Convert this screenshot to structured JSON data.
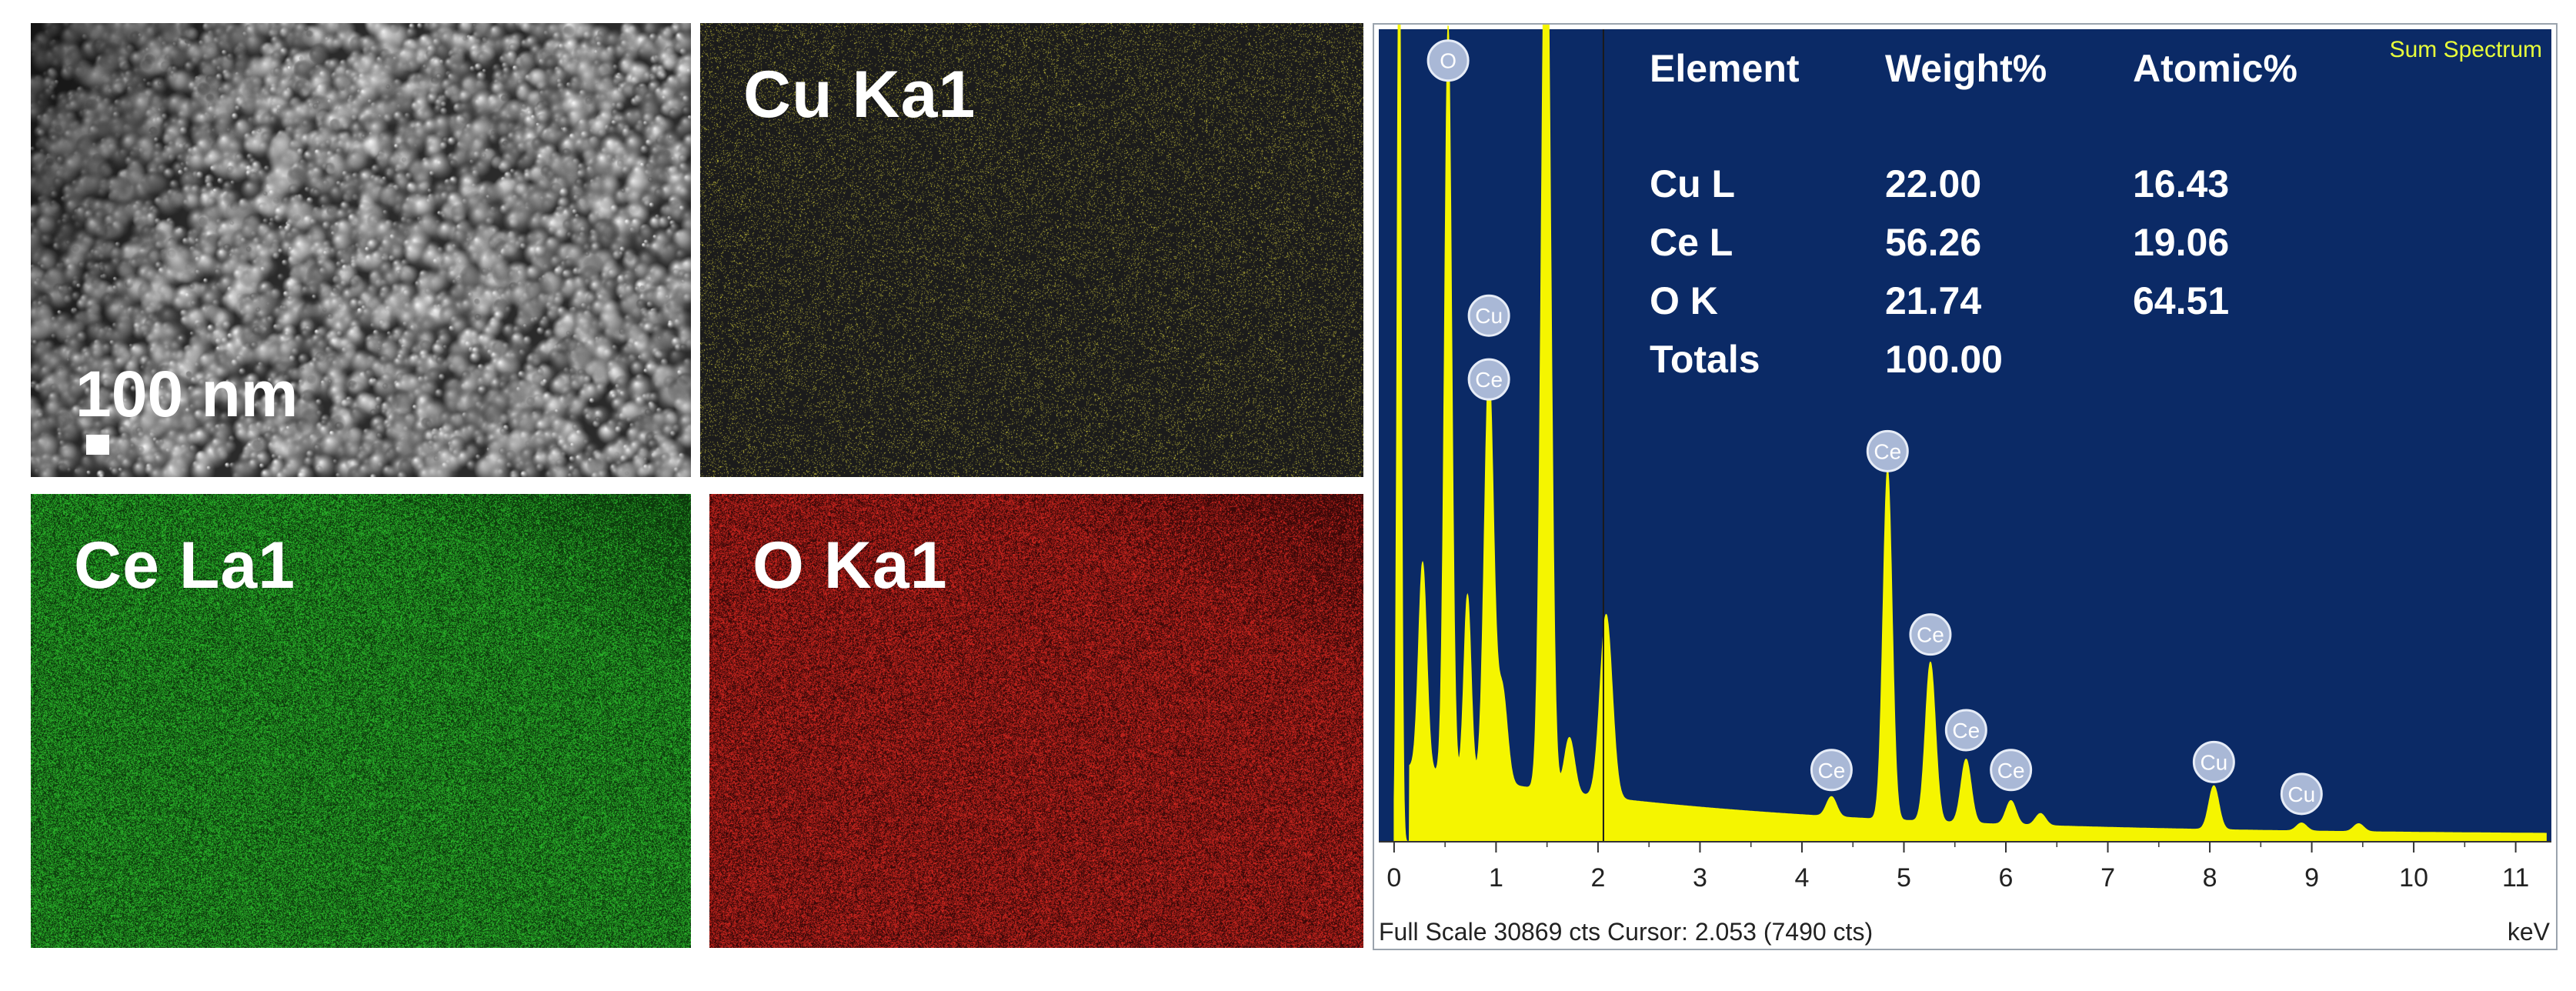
{
  "sem_panel": {
    "scale_bar_label": "100 nm",
    "colors": {
      "base": "#7d7d7d"
    }
  },
  "maps": [
    {
      "id": "cu",
      "label": "Cu Ka1",
      "color": "#c9c23a",
      "background": "#1b1b1b"
    },
    {
      "id": "ce",
      "label": "Ce La1",
      "color": "#2fc62f",
      "background": "#0c3a0c"
    },
    {
      "id": "o",
      "label": "O Ka1",
      "color": "#e02a22",
      "background": "#3a0808"
    }
  ],
  "spectrum": {
    "title": "Sum Spectrum",
    "colors": {
      "background": "#0b2a66",
      "fill": "#f5f500",
      "axis_text": "#222222",
      "title": "#e8ff3a"
    },
    "table": {
      "headers": [
        "Element",
        "Weight%",
        "Atomic%"
      ],
      "rows": [
        [
          "Cu L",
          "22.00",
          "16.43"
        ],
        [
          "Ce L",
          "56.26",
          "19.06"
        ],
        [
          "O K",
          "21.74",
          "64.51"
        ],
        [
          "Totals",
          "100.00",
          ""
        ]
      ]
    },
    "footer_text": "Full Scale 30869 cts Cursor: 2.053  (7490 cts)",
    "x_unit": "keV",
    "cursor_kev": 2.053,
    "chart_data": {
      "type": "area",
      "x_ticks": [
        "0",
        "1",
        "2",
        "3",
        "4",
        "5",
        "6",
        "7",
        "8",
        "9",
        "10",
        "11"
      ],
      "xlim": [
        -0.15,
        11.35
      ],
      "ylim": [
        0,
        1
      ],
      "peaks": [
        {
          "kev": 0.05,
          "height": 1.2,
          "width": 0.02
        },
        {
          "kev": 0.28,
          "height": 0.26,
          "width": 0.04
        },
        {
          "kev": 0.53,
          "height": 0.94,
          "width": 0.035
        },
        {
          "kev": 0.72,
          "height": 0.23,
          "width": 0.035
        },
        {
          "kev": 0.93,
          "height": 0.52,
          "width": 0.045
        },
        {
          "kev": 1.06,
          "height": 0.12,
          "width": 0.05
        },
        {
          "kev": 1.49,
          "height": 1.2,
          "width": 0.045
        },
        {
          "kev": 1.72,
          "height": 0.07,
          "width": 0.05
        },
        {
          "kev": 2.08,
          "height": 0.23,
          "width": 0.06
        },
        {
          "kev": 4.29,
          "height": 0.025,
          "width": 0.05
        },
        {
          "kev": 4.84,
          "height": 0.44,
          "width": 0.045
        },
        {
          "kev": 5.26,
          "height": 0.2,
          "width": 0.05
        },
        {
          "kev": 5.61,
          "height": 0.08,
          "width": 0.05
        },
        {
          "kev": 6.05,
          "height": 0.03,
          "width": 0.05
        },
        {
          "kev": 6.34,
          "height": 0.015,
          "width": 0.05
        },
        {
          "kev": 8.04,
          "height": 0.055,
          "width": 0.05
        },
        {
          "kev": 8.9,
          "height": 0.01,
          "width": 0.05
        },
        {
          "kev": 9.46,
          "height": 0.01,
          "width": 0.05
        }
      ],
      "annotations": [
        {
          "label": "O",
          "kev": 0.53,
          "level": 0.98
        },
        {
          "label": "Cu",
          "kev": 0.93,
          "level": 0.66
        },
        {
          "label": "Ce",
          "kev": 0.93,
          "level": 0.58
        },
        {
          "label": "Ce",
          "kev": 4.29,
          "level": 0.09
        },
        {
          "label": "Ce",
          "kev": 4.84,
          "level": 0.49
        },
        {
          "label": "Ce",
          "kev": 5.26,
          "level": 0.26
        },
        {
          "label": "Ce",
          "kev": 5.61,
          "level": 0.14
        },
        {
          "label": "Ce",
          "kev": 6.05,
          "level": 0.09
        },
        {
          "label": "Cu",
          "kev": 8.04,
          "level": 0.1
        },
        {
          "label": "Cu",
          "kev": 8.9,
          "level": 0.06
        }
      ]
    }
  }
}
